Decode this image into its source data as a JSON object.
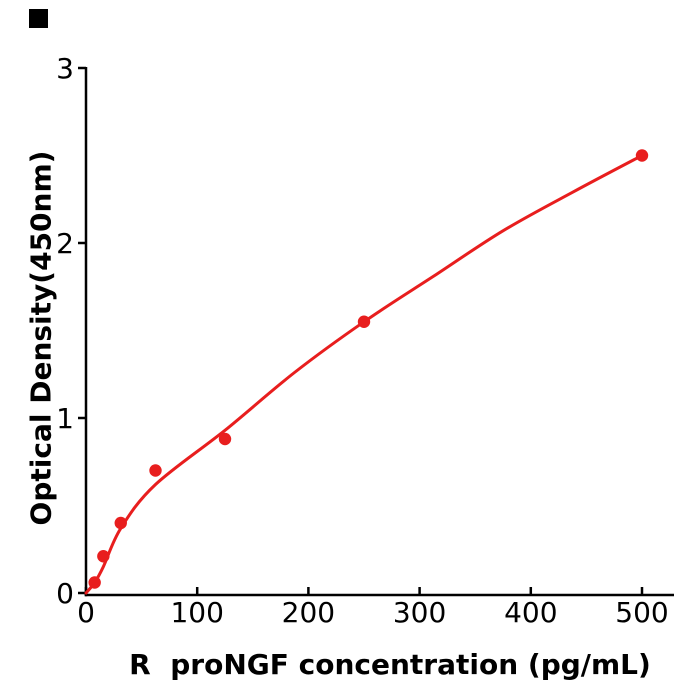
{
  "figure": {
    "background_color": "#ffffff",
    "axis_color": "#000000",
    "accent_red": "#e81e1e",
    "corner_mark_color": "#000000"
  },
  "chart_data": {
    "type": "scatter",
    "title": "",
    "xlabel": "R  proNGF concentration (pg/mL)",
    "ylabel": "Optical Density(450nm)",
    "xlim": [
      0,
      529
    ],
    "ylim": [
      0,
      3
    ],
    "x_ticks": [
      0,
      100,
      200,
      300,
      400,
      500
    ],
    "y_ticks": [
      0,
      1,
      2,
      3
    ],
    "grid": false,
    "legend": "none",
    "tick_direction": {
      "x": "in",
      "y": "out"
    },
    "series": [
      {
        "name": "standard-points",
        "kind": "points",
        "color": "#e81e1e",
        "marker": "circle",
        "x": [
          7.8,
          15.6,
          31.25,
          62.5,
          125,
          250,
          500
        ],
        "y": [
          0.06,
          0.21,
          0.4,
          0.7,
          0.88,
          1.55,
          2.5
        ]
      },
      {
        "name": "fitted-curve",
        "kind": "curve",
        "color": "#e81e1e",
        "x": [
          0,
          7.8,
          15.6,
          31.25,
          62.5,
          125,
          187.5,
          250,
          312.5,
          375,
          437.5,
          500
        ],
        "y": [
          0,
          0.06,
          0.15,
          0.37,
          0.62,
          0.93,
          1.26,
          1.55,
          1.81,
          2.07,
          2.29,
          2.5
        ]
      }
    ]
  }
}
